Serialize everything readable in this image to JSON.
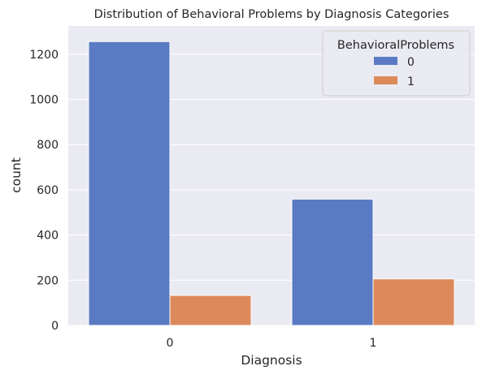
{
  "chart_data": {
    "type": "bar",
    "title": "Distribution of Behavioral Problems by Diagnosis Categories",
    "xlabel": "Diagnosis",
    "ylabel": "count",
    "categories": [
      "0",
      "1"
    ],
    "series": [
      {
        "name": "0",
        "values": [
          1256,
          559
        ],
        "color": "#5a7bc3"
      },
      {
        "name": "1",
        "values": [
          133,
          206
        ],
        "color": "#dc8a5c"
      }
    ],
    "ylim": [
      0,
      1325
    ],
    "yticks": [
      0,
      200,
      400,
      600,
      800,
      1000,
      1200
    ],
    "legend": {
      "title": "BehavioralProblems",
      "position": "top-right"
    },
    "grid": true,
    "grid_axis": "y",
    "background_color": "#eaeaf2",
    "grid_color": "#ffffff"
  }
}
